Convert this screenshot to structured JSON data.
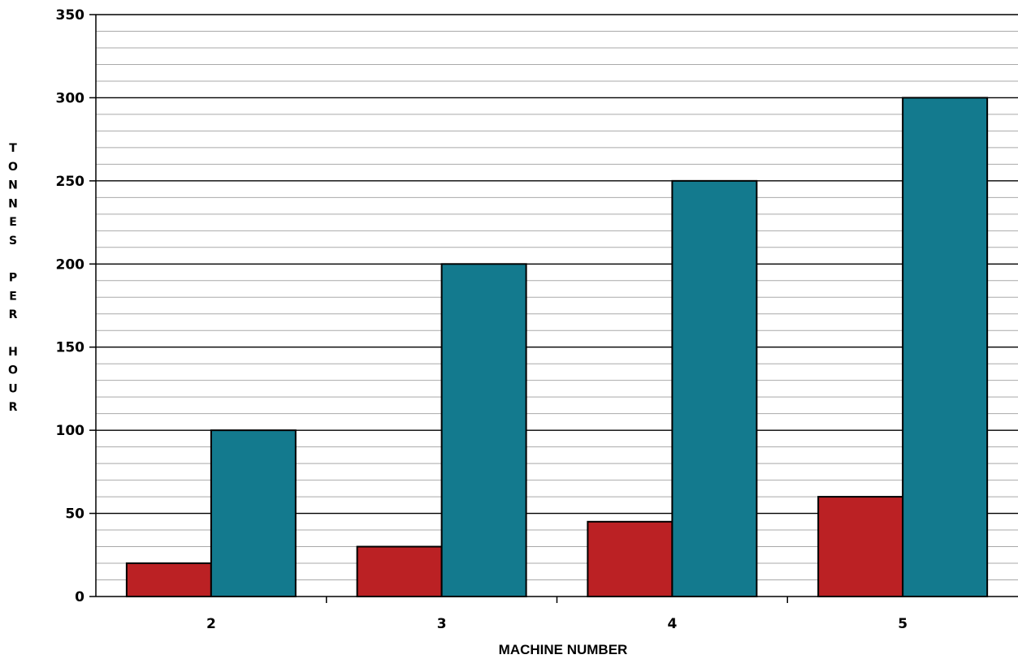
{
  "chart_data": {
    "type": "bar",
    "xlabel": "MACHINE NUMBER",
    "ylabel": "TONNES PER HOUR",
    "categories": [
      "2",
      "3",
      "4",
      "5"
    ],
    "series": [
      {
        "values": [
          20,
          30,
          45,
          60
        ],
        "color": "#bb2124"
      },
      {
        "values": [
          100,
          200,
          250,
          300
        ],
        "color": "#137a8e"
      }
    ],
    "ylim": [
      0,
      350
    ],
    "yticks": [
      0,
      50,
      100,
      150,
      200,
      250,
      300,
      350
    ],
    "ytick_labels": [
      "0",
      "50",
      "100",
      "150",
      "200",
      "250",
      "300",
      "350"
    ],
    "minor_grid_step": 10,
    "grid": true,
    "legend": "none"
  }
}
